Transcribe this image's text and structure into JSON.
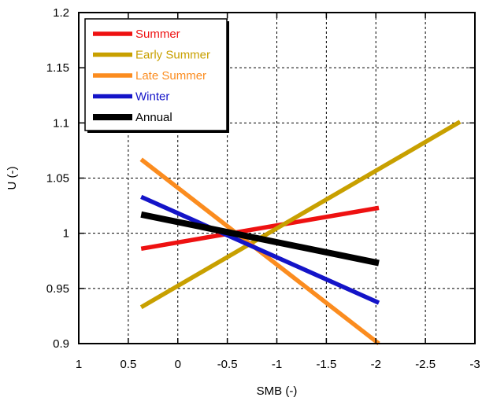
{
  "chart_data": {
    "type": "line",
    "title": "",
    "xlabel": "SMB (-)",
    "ylabel": "U (-)",
    "xlim": [
      1,
      -3
    ],
    "ylim": [
      0.9,
      1.2
    ],
    "x_reversed": true,
    "grid": true,
    "legend_position": "top-left",
    "x_ticks": [
      "1",
      "0.5",
      "0",
      "-0.5",
      "-1",
      "-1.5",
      "-2",
      "-2.5",
      "-3"
    ],
    "x_tick_values": [
      1,
      0.5,
      0,
      -0.5,
      -1,
      -1.5,
      -2,
      -2.5,
      -3
    ],
    "y_ticks": [
      "0.9",
      "0.95",
      "1",
      "1.05",
      "1.1",
      "1.15",
      "1.2"
    ],
    "y_tick_values": [
      0.9,
      0.95,
      1,
      1.05,
      1.1,
      1.15,
      1.2
    ],
    "series": [
      {
        "name": "Summer",
        "color": "#ee1111",
        "points": [
          [
            0.37,
            0.986
          ],
          [
            -2.03,
            1.023
          ]
        ]
      },
      {
        "name": "Early Summer",
        "color": "#c8a000",
        "points": [
          [
            0.37,
            0.933
          ],
          [
            -2.85,
            1.101
          ]
        ]
      },
      {
        "name": "Late Summer",
        "color": "#fb8c1f",
        "points": [
          [
            0.37,
            1.067
          ],
          [
            -2.03,
            0.9
          ]
        ]
      },
      {
        "name": "Winter",
        "color": "#1414c8",
        "points": [
          [
            0.37,
            1.033
          ],
          [
            -2.03,
            0.937
          ]
        ]
      },
      {
        "name": "Annual",
        "color": "#000000",
        "points": [
          [
            0.37,
            1.017
          ],
          [
            -2.03,
            0.973
          ]
        ]
      }
    ]
  }
}
